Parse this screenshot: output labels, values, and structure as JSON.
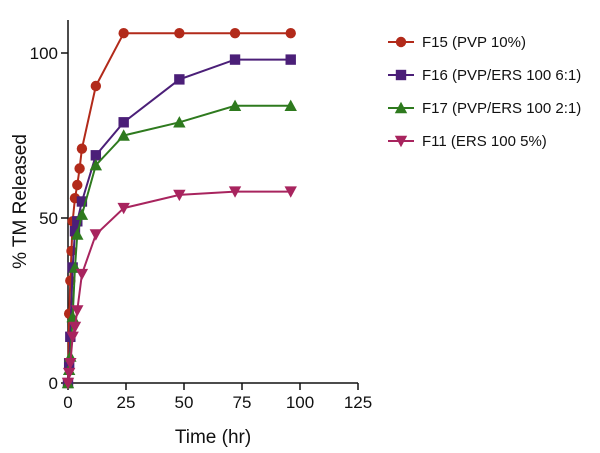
{
  "chart_data": {
    "type": "line",
    "xlabel": "Time (hr)",
    "ylabel": "% TM Released",
    "xlim": [
      0,
      125
    ],
    "ylim": [
      0,
      110
    ],
    "xticks": [
      "0",
      "25",
      "50",
      "75",
      "100",
      "125"
    ],
    "yticks": [
      "0",
      "50",
      "100"
    ],
    "grid": false,
    "legend_position": "top-right",
    "series": [
      {
        "name": "F15 (PVP 10%)",
        "color": "#b22a1a",
        "marker": "circle",
        "x": [
          0,
          0.5,
          1,
          1.5,
          2,
          3,
          4,
          5,
          6,
          12,
          24,
          48,
          72,
          96
        ],
        "y": [
          0,
          21,
          31,
          40,
          49,
          56,
          60,
          65,
          71,
          90,
          106,
          106,
          106,
          106
        ]
      },
      {
        "name": "F16 (PVP/ERS 100 6:1)",
        "color": "#4b1f78",
        "marker": "square",
        "x": [
          0,
          0.5,
          1,
          2,
          3,
          4,
          6,
          12,
          24,
          48,
          72,
          96
        ],
        "y": [
          0,
          6,
          14,
          35,
          46,
          49,
          55,
          69,
          79,
          92,
          98,
          98
        ]
      },
      {
        "name": "F17 (PVP/ERS 100 2:1)",
        "color": "#2e7a1e",
        "marker": "triangle-up",
        "x": [
          0,
          0.5,
          1,
          2,
          3,
          4,
          6,
          12,
          24,
          48,
          72,
          96
        ],
        "y": [
          0,
          4,
          8,
          20,
          35,
          45,
          51,
          66,
          75,
          79,
          84,
          84
        ]
      },
      {
        "name": "F11 (ERS 100 5%)",
        "color": "#a8245e",
        "marker": "triangle-down",
        "x": [
          0,
          0.5,
          1,
          2,
          3,
          4,
          6,
          12,
          24,
          48,
          72,
          96
        ],
        "y": [
          0,
          3,
          6,
          14,
          17,
          22,
          33,
          45,
          53,
          57,
          58,
          58
        ]
      }
    ]
  }
}
